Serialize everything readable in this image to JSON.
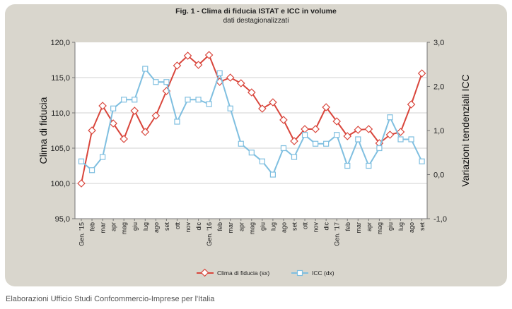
{
  "chart_data": {
    "type": "line",
    "title": "Fig. 1 - Clima di fiducia ISTAT e ICC in volume",
    "subtitle": "dati destagionalizzati",
    "ylabel_left": "Clima di fiducia",
    "ylabel_right": "Variazioni tendenziali ICC",
    "ylim_left": [
      95,
      120
    ],
    "ylim_right": [
      -1,
      3
    ],
    "yticks_left": [
      "95,0",
      "100,0",
      "105,0",
      "110,0",
      "115,0",
      "120,0"
    ],
    "yticks_right": [
      "-1,0",
      "0,0",
      "1,0",
      "2,0",
      "3,0"
    ],
    "categories": [
      "Gen. '15",
      "feb",
      "mar",
      "apr",
      "mag",
      "giu",
      "lug",
      "ago",
      "set",
      "ott",
      "nov",
      "dic",
      "Gen. '16",
      "feb",
      "mar",
      "apr",
      "mag",
      "giu",
      "lug",
      "ago",
      "set",
      "ott",
      "nov",
      "dic",
      "Gen. '17",
      "feb",
      "mar",
      "apr",
      "mag",
      "giu",
      "lug",
      "ago",
      "set"
    ],
    "series": [
      {
        "name": "Clima di fiducia (sx)",
        "axis": "left",
        "color": "#d9463c",
        "values": [
          100.0,
          107.5,
          111.0,
          108.5,
          106.3,
          110.3,
          107.3,
          109.6,
          113.1,
          116.7,
          118.1,
          116.8,
          118.2,
          114.4,
          115.0,
          114.2,
          112.9,
          110.6,
          111.5,
          109.0,
          106.0,
          107.7,
          107.7,
          110.8,
          108.8,
          106.7,
          107.6,
          107.7,
          105.7,
          106.9,
          107.3,
          111.2,
          115.6
        ]
      },
      {
        "name": "ICC (dx)",
        "axis": "right",
        "color": "#7fbfe0",
        "values": [
          0.3,
          0.1,
          0.4,
          1.5,
          1.7,
          1.7,
          2.4,
          2.1,
          2.1,
          1.2,
          1.7,
          1.7,
          1.6,
          2.3,
          1.5,
          0.7,
          0.5,
          0.3,
          0.0,
          0.6,
          0.4,
          0.9,
          0.7,
          0.7,
          0.9,
          0.2,
          0.8,
          0.2,
          0.6,
          1.3,
          0.8,
          0.8,
          0.3
        ]
      }
    ]
  },
  "footer": {
    "source": "Elaborazioni Ufficio Studi Confcommercio-Imprese per l'Italia"
  }
}
